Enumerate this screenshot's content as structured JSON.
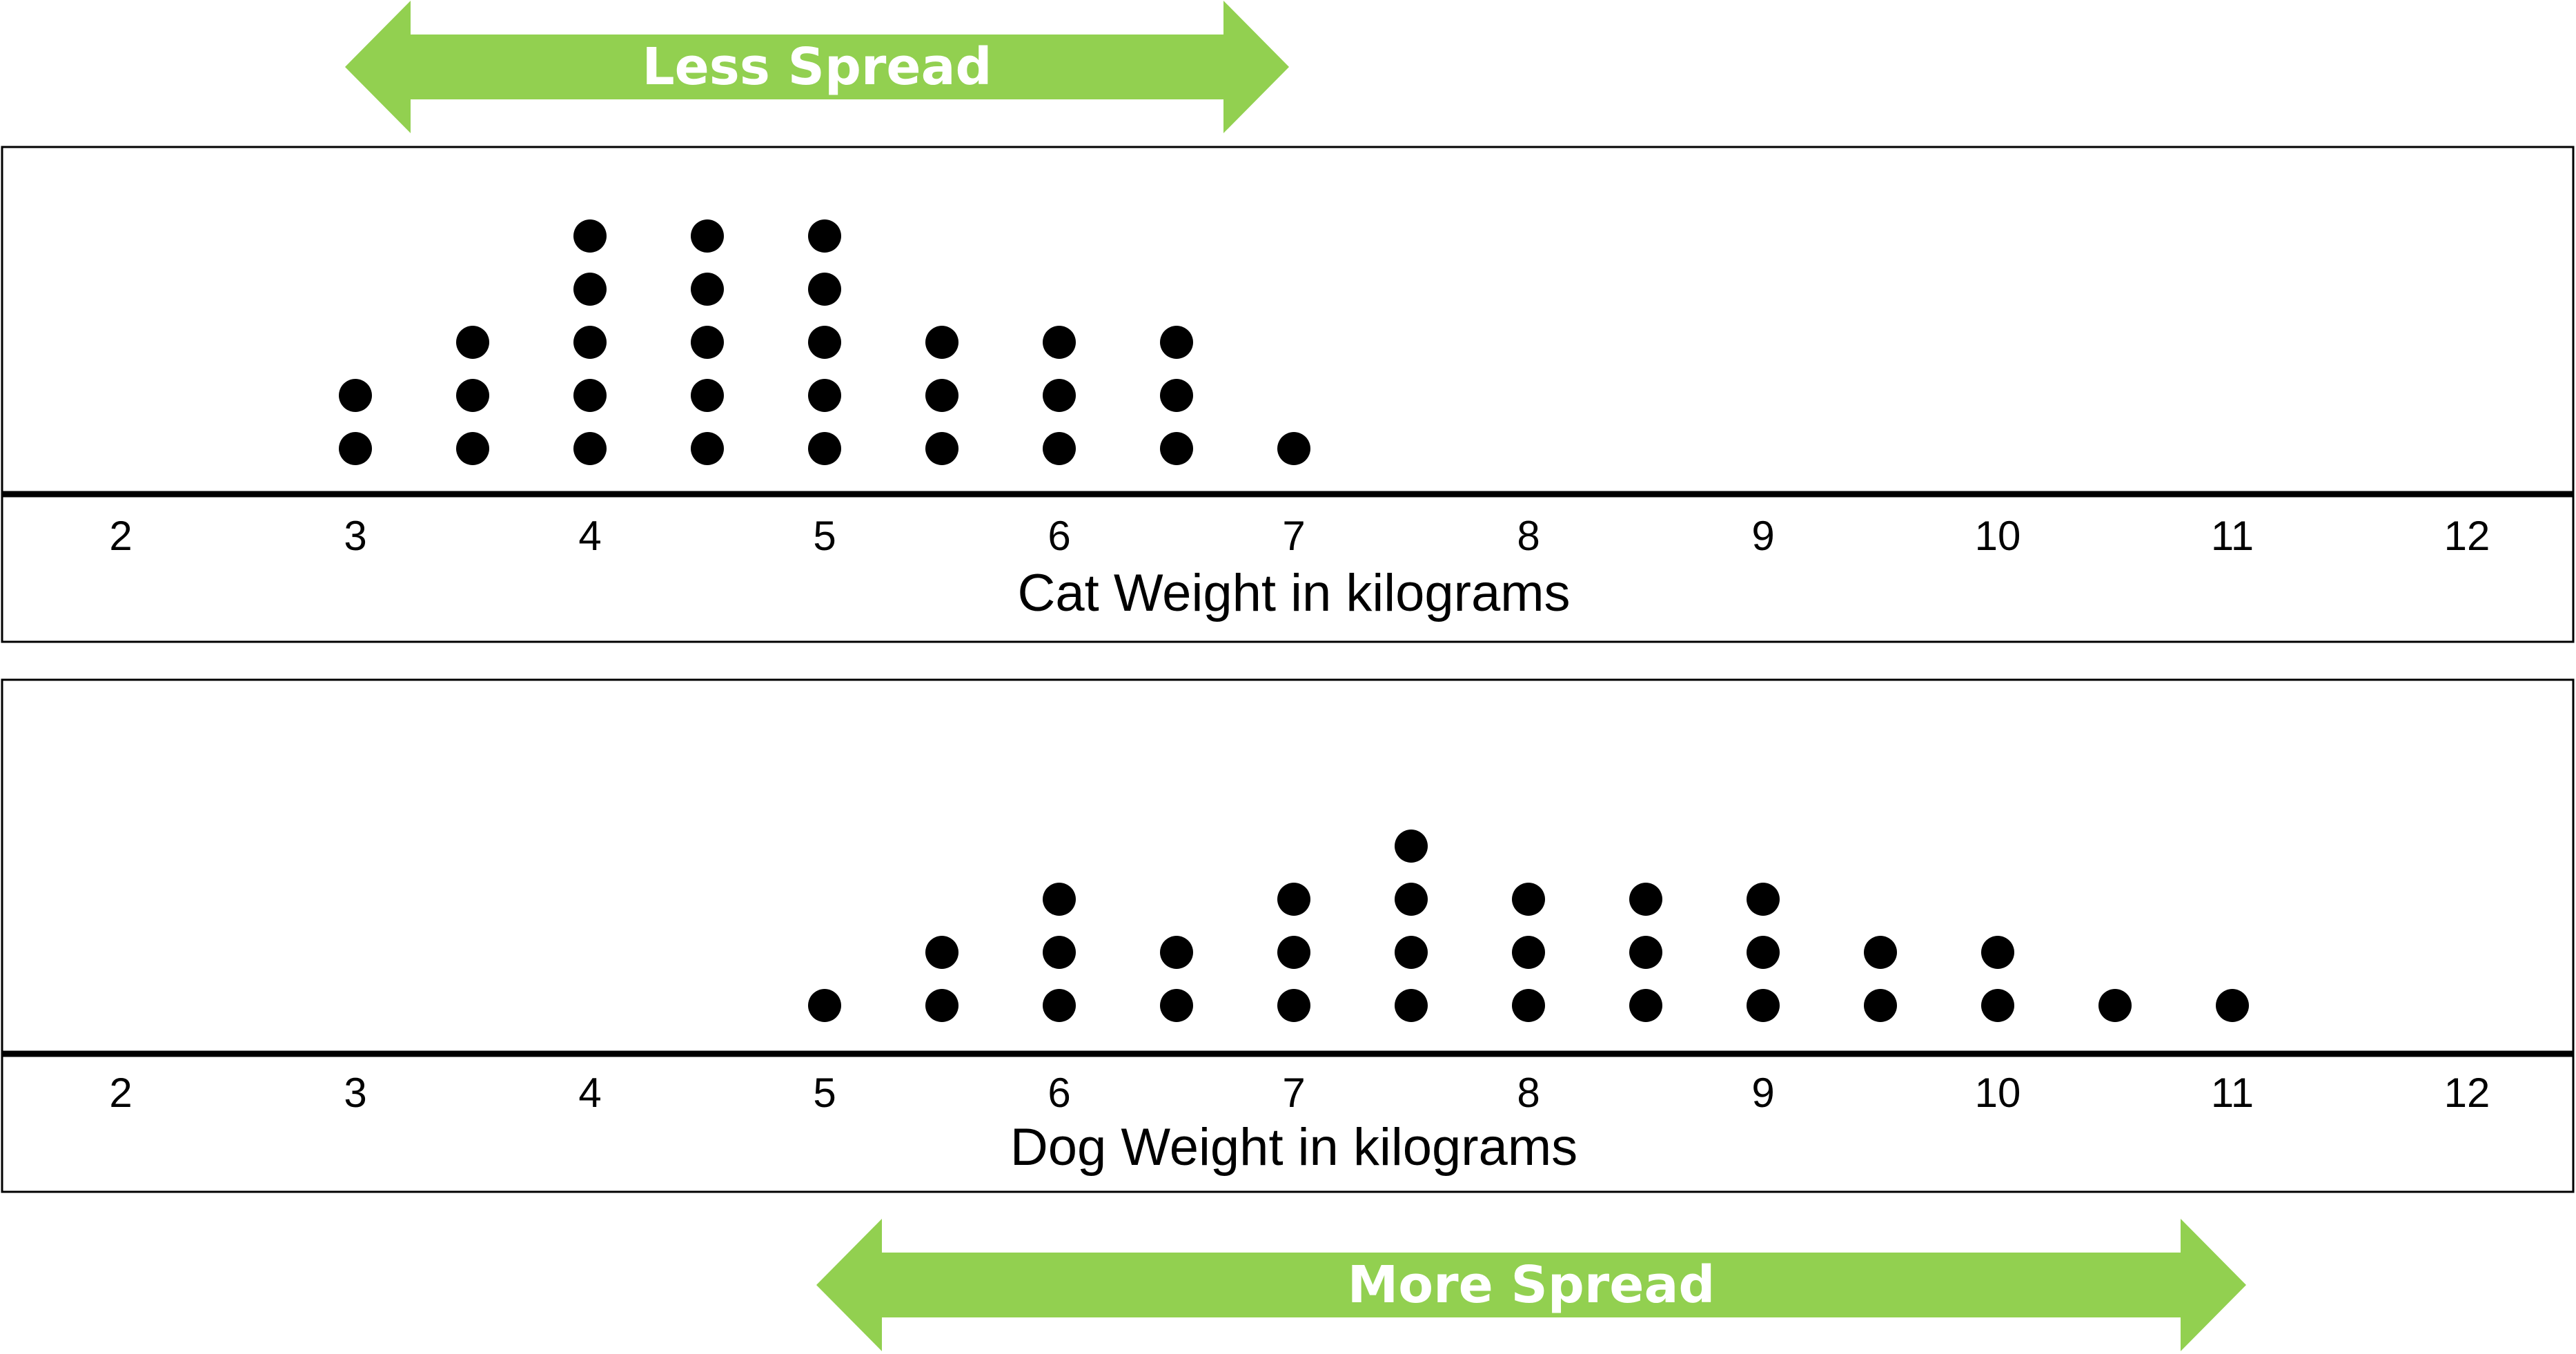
{
  "colors": {
    "arrow": "#92d050",
    "arrow_text": "#ffffff",
    "dot": "#000000",
    "axis": "#000000",
    "panel_border": "#000000"
  },
  "annotations": {
    "top_arrow": {
      "label": "Less Spread",
      "from": 2.5,
      "to": 7.5,
      "panel": 0
    },
    "bottom_arrow": {
      "label": "More Spread",
      "from": 4.5,
      "to": 11.5,
      "panel": 1
    }
  },
  "chart_data": [
    {
      "type": "dot-plot",
      "title": "",
      "xlabel": "Cat Weight in kilograms",
      "ylabel": "",
      "xlim": [
        2,
        12
      ],
      "ticks": [
        2,
        3,
        4,
        5,
        6,
        7,
        8,
        9,
        10,
        11,
        12
      ],
      "tick_labels": [
        "2",
        "3",
        "4",
        "5",
        "6",
        "7",
        "8",
        "9",
        "10",
        "11",
        "12"
      ],
      "grid": false,
      "values": [
        3,
        3.5,
        4,
        4.5,
        5,
        5.5,
        6,
        6.5,
        7
      ],
      "counts": [
        2,
        3,
        5,
        5,
        5,
        3,
        3,
        3,
        1
      ]
    },
    {
      "type": "dot-plot",
      "title": "",
      "xlabel": "Dog Weight in kilograms",
      "ylabel": "",
      "xlim": [
        2,
        12
      ],
      "ticks": [
        2,
        3,
        4,
        5,
        6,
        7,
        8,
        9,
        10,
        11,
        12
      ],
      "tick_labels": [
        "2",
        "3",
        "4",
        "5",
        "6",
        "7",
        "8",
        "9",
        "10",
        "11",
        "12"
      ],
      "grid": false,
      "values": [
        5,
        5.5,
        6,
        6.5,
        7,
        7.5,
        8,
        8.5,
        9,
        9.5,
        10,
        10.5,
        11
      ],
      "counts": [
        1,
        2,
        3,
        2,
        3,
        4,
        3,
        3,
        3,
        2,
        2,
        1,
        1
      ]
    }
  ]
}
